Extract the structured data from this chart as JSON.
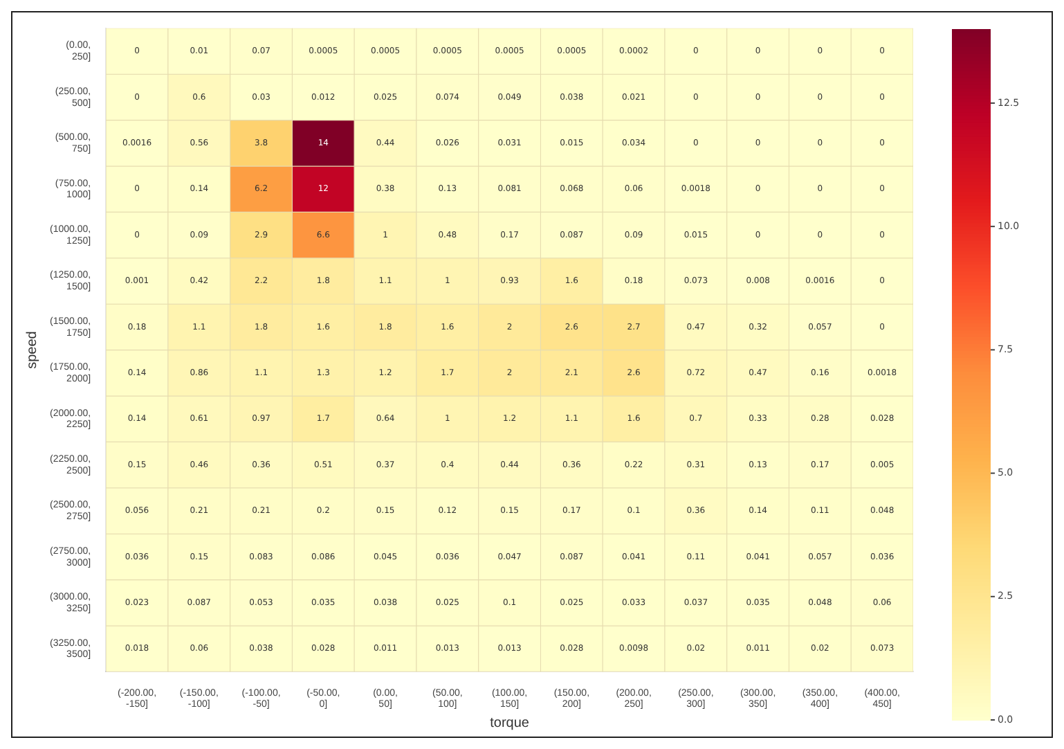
{
  "chart_data": {
    "type": "heatmap",
    "xlabel": "torque",
    "ylabel": "speed",
    "categories": [
      "(-200.00, -150]",
      "(-150.00, -100]",
      "(-100.00, -50]",
      "(-50.00, 0]",
      "(0.00, 50]",
      "(50.00, 100]",
      "(100.00, 150]",
      "(150.00, 200]",
      "(200.00, 250]",
      "(250.00, 300]",
      "(300.00, 350]",
      "(350.00, 400]",
      "(400.00, 450]"
    ],
    "y_categories": [
      "(0.00, 250]",
      "(250.00, 500]",
      "(500.00, 750]",
      "(750.00, 1000]",
      "(1000.00, 1250]",
      "(1250.00, 1500]",
      "(1500.00, 1750]",
      "(1750.00, 2000]",
      "(2000.00, 2250]",
      "(2250.00, 2500]",
      "(2500.00, 2750]",
      "(2750.00, 3000]",
      "(3000.00, 3250]",
      "(3250.00, 3500]"
    ],
    "cells": [
      [
        0,
        0.01,
        0.07,
        0.0005,
        0.0005,
        0.0005,
        0.0005,
        0.0005,
        0.0002,
        0,
        0,
        0,
        0
      ],
      [
        0,
        0.6,
        0.03,
        0.012,
        0.025,
        0.074,
        0.049,
        0.038,
        0.021,
        0,
        0,
        0,
        0
      ],
      [
        0.0016,
        0.56,
        3.8,
        14,
        0.44,
        0.026,
        0.031,
        0.015,
        0.034,
        0,
        0,
        0,
        0
      ],
      [
        0,
        0.14,
        6.2,
        12,
        0.38,
        0.13,
        0.081,
        0.068,
        0.06,
        0.0018,
        0,
        0,
        0
      ],
      [
        0,
        0.09,
        2.9,
        6.6,
        1,
        0.48,
        0.17,
        0.087,
        0.09,
        0.015,
        0,
        0,
        0
      ],
      [
        0.001,
        0.42,
        2.2,
        1.8,
        1.1,
        1,
        0.93,
        1.6,
        0.18,
        0.073,
        0.008,
        0.0016,
        0
      ],
      [
        0.18,
        1.1,
        1.8,
        1.6,
        1.8,
        1.6,
        2,
        2.6,
        2.7,
        0.47,
        0.32,
        0.057,
        0
      ],
      [
        0.14,
        0.86,
        1.1,
        1.3,
        1.2,
        1.7,
        2,
        2.1,
        2.6,
        0.72,
        0.47,
        0.16,
        0.0018
      ],
      [
        0.14,
        0.61,
        0.97,
        1.7,
        0.64,
        1,
        1.2,
        1.1,
        1.6,
        0.7,
        0.33,
        0.28,
        0.028
      ],
      [
        0.15,
        0.46,
        0.36,
        0.51,
        0.37,
        0.4,
        0.44,
        0.36,
        0.22,
        0.31,
        0.13,
        0.17,
        0.005
      ],
      [
        0.056,
        0.21,
        0.21,
        0.2,
        0.15,
        0.12,
        0.15,
        0.17,
        0.1,
        0.36,
        0.14,
        0.11,
        0.048
      ],
      [
        0.036,
        0.15,
        0.083,
        0.086,
        0.045,
        0.036,
        0.047,
        0.087,
        0.041,
        0.11,
        0.041,
        0.057,
        0.036
      ],
      [
        0.023,
        0.087,
        0.053,
        0.035,
        0.038,
        0.025,
        0.1,
        0.025,
        0.033,
        0.037,
        0.035,
        0.048,
        0.06
      ],
      [
        0.018,
        0.06,
        0.038,
        0.028,
        0.011,
        0.013,
        0.013,
        0.028,
        0.0098,
        0.02,
        0.011,
        0.02,
        0.073
      ]
    ],
    "data_labels": true,
    "clim": [
      0,
      14
    ],
    "cticks": [
      {
        "value": 0,
        "label": "0.0"
      },
      {
        "value": 2.5,
        "label": "2.5"
      },
      {
        "value": 5,
        "label": "5.0"
      },
      {
        "value": 7.5,
        "label": "7.5"
      },
      {
        "value": 10,
        "label": "10.0"
      },
      {
        "value": 12.5,
        "label": "12.5"
      }
    ]
  }
}
